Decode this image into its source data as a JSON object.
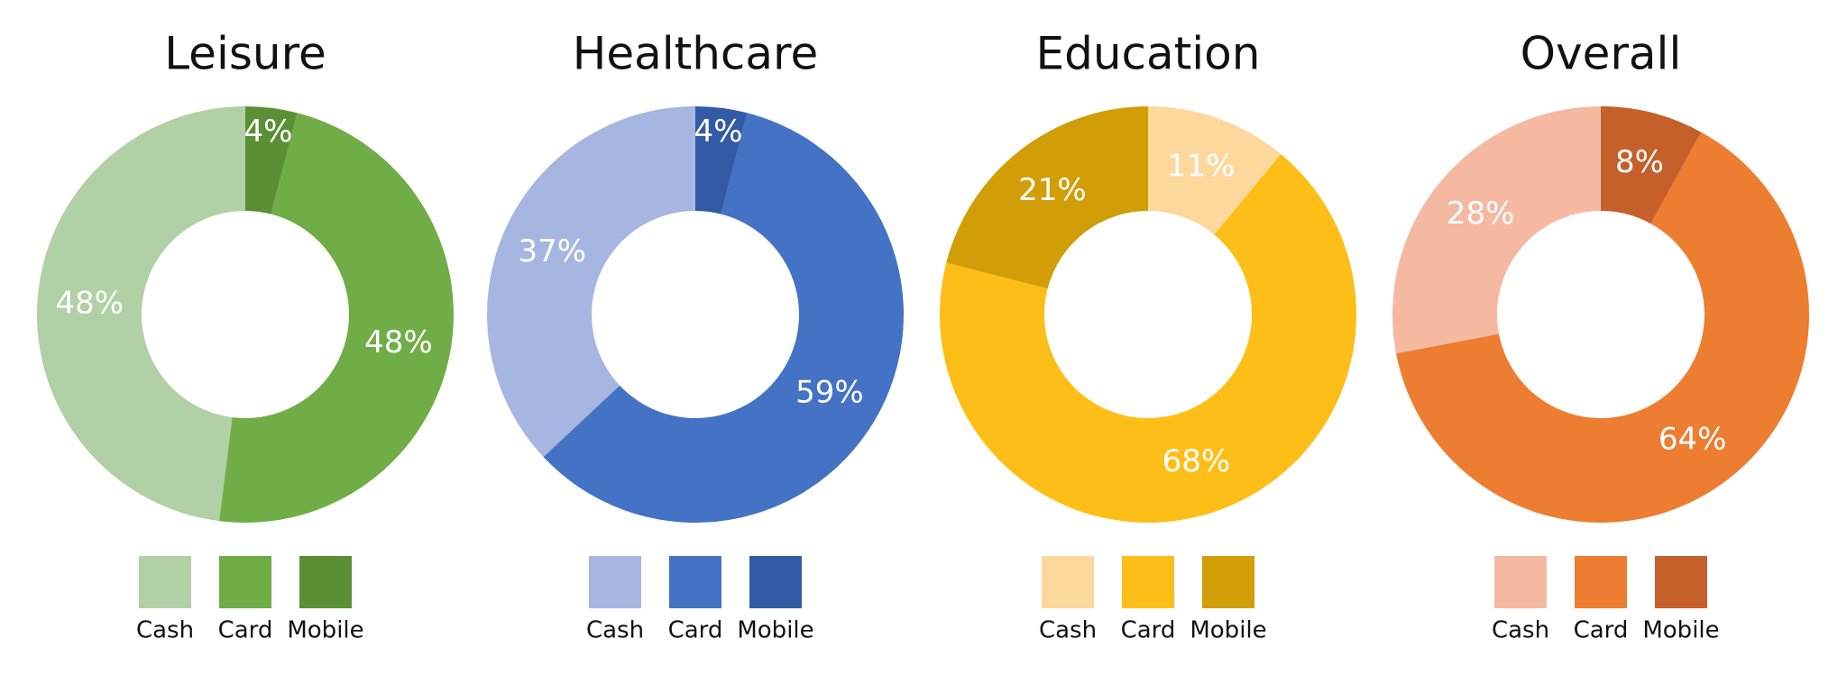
{
  "chart_data": [
    {
      "type": "donut",
      "title": "Leisure",
      "direction": "counterclockwise",
      "categories": [
        "Cash",
        "Card",
        "Mobile"
      ],
      "values": [
        48,
        48,
        4
      ],
      "value_labels": [
        "48%",
        "48%",
        "4%"
      ],
      "colors": [
        "#b2d0a5",
        "#70ad47",
        "#5b8f35"
      ]
    },
    {
      "type": "donut",
      "title": "Healthcare",
      "direction": "counterclockwise",
      "categories": [
        "Cash",
        "Card",
        "Mobile"
      ],
      "values": [
        37,
        59,
        4
      ],
      "value_labels": [
        "37%",
        "59%",
        "4%"
      ],
      "colors": [
        "#a7b6e0",
        "#4472c4",
        "#335aa5"
      ]
    },
    {
      "type": "donut",
      "title": "Education",
      "direction": "clockwise",
      "categories": [
        "Cash",
        "Card",
        "Mobile"
      ],
      "values": [
        11,
        68,
        21
      ],
      "value_labels": [
        "11%",
        "68%",
        "21%"
      ],
      "colors": [
        "#fdd89c",
        "#fdbf17",
        "#d19e08"
      ]
    },
    {
      "type": "donut",
      "title": "Overall",
      "direction": "counterclockwise",
      "categories": [
        "Cash",
        "Card",
        "Mobile"
      ],
      "values": [
        28,
        64,
        8
      ],
      "value_labels": [
        "28%",
        "64%",
        "8%"
      ],
      "colors": [
        "#f5b9a2",
        "#ed7d31",
        "#c5602a"
      ]
    }
  ]
}
